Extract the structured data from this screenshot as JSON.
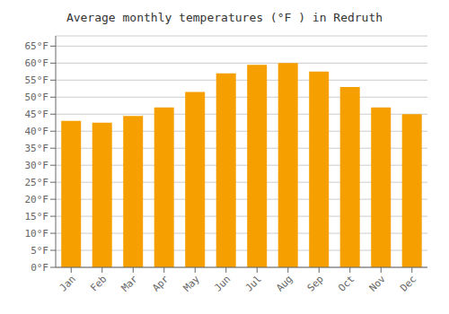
{
  "chart_data": {
    "type": "bar",
    "title": "Average monthly temperatures (°F ) in Redruth",
    "categories": [
      "Jan",
      "Feb",
      "Mar",
      "Apr",
      "May",
      "Jun",
      "Jul",
      "Aug",
      "Sep",
      "Oct",
      "Nov",
      "Dec"
    ],
    "values": [
      43.0,
      42.5,
      44.5,
      47.0,
      51.5,
      57.0,
      59.5,
      60.0,
      57.5,
      53.0,
      47.0,
      45.0
    ],
    "color": "#F5A000",
    "ylim": [
      0,
      68
    ],
    "yticks": [
      {
        "value": 0,
        "label": "0°F"
      },
      {
        "value": 5,
        "label": "5°F"
      },
      {
        "value": 10,
        "label": "10°F"
      },
      {
        "value": 15,
        "label": "15°F"
      },
      {
        "value": 20,
        "label": "20°F"
      },
      {
        "value": 25,
        "label": "25°F"
      },
      {
        "value": 30,
        "label": "30°F"
      },
      {
        "value": 35,
        "label": "35°F"
      },
      {
        "value": 40,
        "label": "40°F"
      },
      {
        "value": 45,
        "label": "45°F"
      },
      {
        "value": 50,
        "label": "50°F"
      },
      {
        "value": 55,
        "label": "55°F"
      },
      {
        "value": 60,
        "label": "60°F"
      },
      {
        "value": 65,
        "label": "65°F"
      }
    ],
    "grid": true
  }
}
